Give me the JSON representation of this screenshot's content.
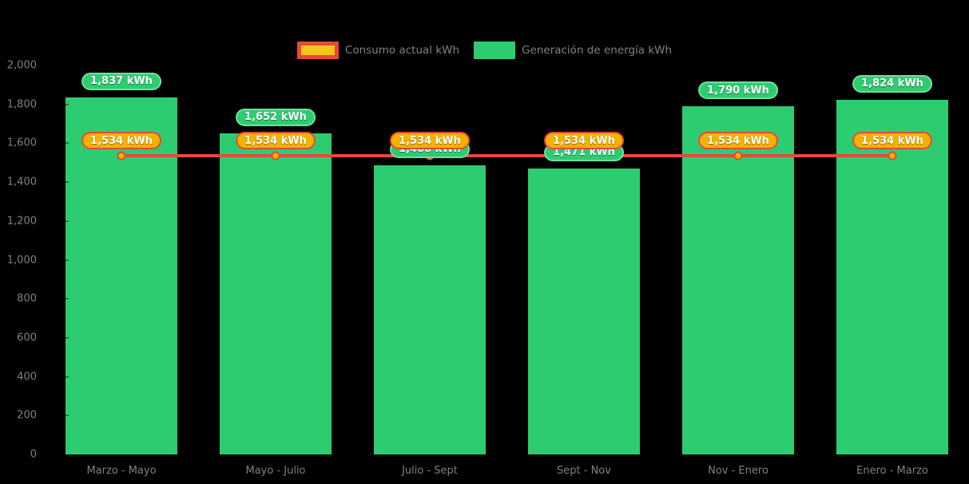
{
  "colors": {
    "background": "#000000",
    "axis_text": "#808080",
    "generation_green": "#2ECC71",
    "generation_pill_border": "#6FDF9F",
    "consumption_line_red": "#E8483B",
    "consumption_gold": "#F2B200",
    "legend_inner_yellow": "#F5C518",
    "pill_text": "#FFFFFF"
  },
  "legend": {
    "items": [
      {
        "label": "Consumo actual kWh",
        "series": "consumption"
      },
      {
        "label": "Generación de energía kWh",
        "series": "generation"
      }
    ]
  },
  "chart_data": {
    "type": "bar",
    "title": "",
    "xlabel": "",
    "ylabel": "",
    "categories": [
      "Marzo - Mayo",
      "Mayo - Julio",
      "Julio - Sept",
      "Sept - Nov",
      "Nov - Enero",
      "Enero - Marzo"
    ],
    "series": [
      {
        "name": "Generación de energía kWh",
        "type": "bar",
        "color": "#2ECC71",
        "values": [
          1837,
          1652,
          1488,
          1471,
          1790,
          1824
        ],
        "labels": [
          "1,837 kWh",
          "1,652 kWh",
          "1,488 kWh",
          "1,471 kWh",
          "1,790 kWh",
          "1,824 kWh"
        ]
      },
      {
        "name": "Consumo actual kWh",
        "type": "line",
        "color": "#E8483B",
        "marker_color": "#F2B200",
        "values": [
          1534,
          1534,
          1534,
          1534,
          1534,
          1534
        ],
        "labels": [
          "1,534 kWh",
          "1,534 kWh",
          "1,534 kWh",
          "1,534 kWh",
          "1,534 kWh",
          "1,534 kWh"
        ]
      }
    ],
    "unit": "kWh",
    "ylim": [
      0,
      2000
    ],
    "ytick_step": 200,
    "ytick_labels": [
      "0",
      "200",
      "400",
      "600",
      "800",
      "1,000",
      "1,200",
      "1,400",
      "1,600",
      "1,800",
      "2,000"
    ],
    "grid": false,
    "legend_position": "top-center"
  }
}
